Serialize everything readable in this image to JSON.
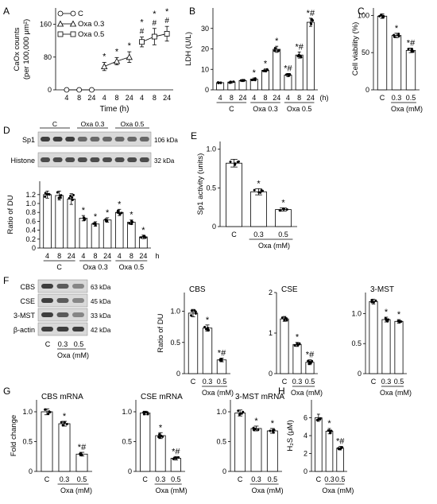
{
  "chart_data": [
    {
      "panel": "A",
      "type": "line",
      "ylabel": "CaOx counts",
      "ylabel2": "(per 100,000 μm²)",
      "xlabel": "Time (h)",
      "ylim": [
        0,
        200
      ],
      "yticks": [
        "0",
        "80",
        "160"
      ],
      "legend": [
        "C",
        "Oxa 0.3",
        "Oxa 0.5"
      ],
      "legend_position": "top-left",
      "groups": [
        "C",
        "Oxa 0.3",
        "Oxa 0.5"
      ],
      "x_labels": [
        "4",
        "8",
        "24",
        "4",
        "8",
        "24",
        "4",
        "8",
        "24"
      ],
      "series": [
        {
          "name": "C",
          "marker": "circle",
          "values": [
            0,
            0,
            0
          ],
          "err": [
            0,
            0,
            0
          ]
        },
        {
          "name": "Oxa 0.3",
          "marker": "triangle",
          "values": [
            57,
            70,
            80
          ],
          "err": [
            10,
            9,
            13
          ]
        },
        {
          "name": "Oxa 0.5",
          "marker": "square",
          "values": [
            117,
            130,
            137
          ],
          "err": [
            12,
            20,
            18
          ]
        }
      ],
      "annotations": [
        {
          "i": 3,
          "top": "*"
        },
        {
          "i": 4,
          "top": "*"
        },
        {
          "i": 5,
          "top": "*"
        },
        {
          "i": 6,
          "top": "*",
          "bottom": "#"
        },
        {
          "i": 7,
          "top": "*",
          "bottom": "#"
        },
        {
          "i": 8,
          "top": "*",
          "bottom": "#"
        }
      ]
    },
    {
      "panel": "B",
      "type": "bar",
      "ylabel": "LDH (U/L)",
      "ylim": [
        0,
        40
      ],
      "yticks": [
        "0",
        "10",
        "20",
        "30"
      ],
      "x_labels": [
        "4",
        "8",
        "24",
        "4",
        "8",
        "24",
        "4",
        "8",
        "24"
      ],
      "x_unit": "(h)",
      "groups": [
        "C",
        "Oxa 0.3",
        "Oxa 0.5"
      ],
      "values": [
        3.5,
        3.8,
        4.5,
        5.2,
        9.5,
        19.8,
        7.2,
        17,
        33
      ],
      "err": [
        0.3,
        0.4,
        0.5,
        0.6,
        0.7,
        1.5,
        0.8,
        1.5,
        2
      ],
      "annotations": [
        {
          "i": 3,
          "text": "*"
        },
        {
          "i": 4,
          "text": "*"
        },
        {
          "i": 5,
          "text": "*"
        },
        {
          "i": 6,
          "text": "*#"
        },
        {
          "i": 7,
          "text": "*#"
        },
        {
          "i": 8,
          "text": "*#"
        }
      ]
    },
    {
      "panel": "C",
      "type": "bar",
      "ylabel": "Cell viability (%)",
      "ylim": [
        0,
        110
      ],
      "yticks": [
        "0",
        "50",
        "100"
      ],
      "categories": [
        "C",
        "0.3",
        "0.5"
      ],
      "group_label": "Oxa (mM)",
      "values": [
        99,
        73,
        53
      ],
      "err": [
        3,
        3,
        3
      ],
      "annotations": [
        {
          "i": 1,
          "text": "*"
        },
        {
          "i": 2,
          "text": "*#"
        }
      ]
    },
    {
      "panel": "D",
      "type": "bar",
      "ylabel": "Ratio of DU",
      "ylim": [
        0,
        1.5
      ],
      "yticks": [
        "0",
        "0.2",
        "0.4",
        "0.6",
        "0.8",
        "1.0",
        "1.2"
      ],
      "x_labels": [
        "4",
        "8",
        "24",
        "4",
        "8",
        "24",
        "4",
        "8",
        "24"
      ],
      "x_unit": "h",
      "groups": [
        "C",
        "Oxa 0.3",
        "Oxa 0.5"
      ],
      "values": [
        1.2,
        1.18,
        1.1,
        0.67,
        0.54,
        0.63,
        0.8,
        0.58,
        0.25
      ],
      "err": [
        0.08,
        0.1,
        0.12,
        0.06,
        0.05,
        0.05,
        0.07,
        0.05,
        0.04
      ],
      "annotations": [
        {
          "i": 3,
          "text": "*"
        },
        {
          "i": 4,
          "text": "*"
        },
        {
          "i": 5,
          "text": "*"
        },
        {
          "i": 6,
          "text": "*"
        },
        {
          "i": 7,
          "text": "*"
        },
        {
          "i": 8,
          "text": "*"
        }
      ]
    },
    {
      "panel": "E",
      "type": "bar",
      "ylabel": "Sp1 activity (units)",
      "ylim": [
        0,
        1.1
      ],
      "yticks": [
        "0",
        "0.5",
        "1.0"
      ],
      "categories": [
        "C",
        "0.3",
        "0.5"
      ],
      "group_label": "Oxa (mM)",
      "values": [
        0.82,
        0.45,
        0.22
      ],
      "err": [
        0.05,
        0.04,
        0.02
      ],
      "annotations": [
        {
          "i": 1,
          "text": "*"
        },
        {
          "i": 2,
          "text": "*"
        }
      ]
    },
    {
      "panel": "F1",
      "type": "bar",
      "title": "CBS",
      "ylabel": "Ratio of DU",
      "ylim": [
        0,
        1.3
      ],
      "yticks": [
        "0",
        "0.5",
        "1.0"
      ],
      "categories": [
        "C",
        "0.3",
        "0.5"
      ],
      "group_label": "Oxa (mM)",
      "values": [
        0.97,
        0.73,
        0.22
      ],
      "err": [
        0.06,
        0.05,
        0.03
      ],
      "annotations": [
        {
          "i": 1,
          "text": "*"
        },
        {
          "i": 2,
          "text": "*#"
        }
      ]
    },
    {
      "panel": "F2",
      "type": "bar",
      "title": "CSE",
      "ylim": [
        0,
        2.0
      ],
      "yticks": [
        "0",
        "1",
        "2"
      ],
      "categories": [
        "C",
        "0.3",
        "0.5"
      ],
      "group_label": "Oxa (mM)",
      "values": [
        1.35,
        0.72,
        0.28
      ],
      "err": [
        0.06,
        0.05,
        0.06
      ],
      "annotations": [
        {
          "i": 1,
          "text": "*"
        },
        {
          "i": 2,
          "text": "*#"
        }
      ]
    },
    {
      "panel": "F3",
      "type": "bar",
      "title": "3-MST",
      "ylim": [
        0,
        1.35
      ],
      "yticks": [
        "0",
        "0.5",
        "1.0"
      ],
      "categories": [
        "C",
        "0.3",
        "0.5"
      ],
      "group_label": "Oxa (mM)",
      "values": [
        1.2,
        0.9,
        0.87
      ],
      "err": [
        0.04,
        0.04,
        0.03
      ],
      "annotations": [
        {
          "i": 1,
          "text": "*"
        },
        {
          "i": 2,
          "text": "*"
        }
      ]
    },
    {
      "panel": "G1",
      "type": "bar",
      "title": "CBS mRNA",
      "ylabel": "Fold change",
      "ylim": [
        0,
        1.2
      ],
      "yticks": [
        "0",
        "0.5",
        "1.0"
      ],
      "categories": [
        "C",
        "0.3",
        "0.5"
      ],
      "group_label": "Oxa (mM)",
      "values": [
        1.0,
        0.8,
        0.29
      ],
      "err": [
        0.05,
        0.04,
        0.03
      ],
      "annotations": [
        {
          "i": 1,
          "text": "*"
        },
        {
          "i": 2,
          "text": "*#"
        }
      ]
    },
    {
      "panel": "G2",
      "type": "bar",
      "title": "CSE mRNA",
      "ylim": [
        0,
        1.2
      ],
      "yticks": [
        "0",
        "0.5",
        "1.0"
      ],
      "categories": [
        "C",
        "0.3",
        "0.5"
      ],
      "group_label": "Oxa (mM)",
      "values": [
        0.98,
        0.6,
        0.22
      ],
      "err": [
        0.03,
        0.05,
        0.03
      ],
      "annotations": [
        {
          "i": 1,
          "text": "*"
        },
        {
          "i": 2,
          "text": "*#"
        }
      ]
    },
    {
      "panel": "G3",
      "type": "bar",
      "title": "3-MST mRNA",
      "ylim": [
        0,
        1.2
      ],
      "yticks": [
        "0",
        "0.5",
        "1.0"
      ],
      "categories": [
        "C",
        "0.3",
        "0.5"
      ],
      "group_label": "Oxa (mM)",
      "values": [
        0.98,
        0.72,
        0.68
      ],
      "err": [
        0.05,
        0.04,
        0.04
      ],
      "annotations": [
        {
          "i": 1,
          "text": "*"
        },
        {
          "i": 2,
          "text": "*"
        }
      ]
    },
    {
      "panel": "H",
      "type": "bar",
      "ylabel": "H₂S (μM)",
      "ylim": [
        0,
        8
      ],
      "yticks": [
        "0",
        "2",
        "4",
        "6"
      ],
      "categories": [
        "C",
        "0.3",
        "0.5"
      ],
      "group_label": "Oxa (mM)",
      "values": [
        6.0,
        4.5,
        2.6
      ],
      "err": [
        0.4,
        0.3,
        0.2
      ],
      "annotations": [
        {
          "i": 1,
          "text": "*"
        },
        {
          "i": 2,
          "text": "*#"
        }
      ]
    }
  ],
  "blots": {
    "D": {
      "groups": [
        "C",
        "Oxa 0.3",
        "Oxa 0.5"
      ],
      "rows": [
        {
          "label": "Sp1",
          "kda": "106 kDa"
        },
        {
          "label": "Histone",
          "kda": "32 kDa"
        }
      ]
    },
    "F": {
      "rows": [
        {
          "label": "CBS",
          "kda": "63 kDa"
        },
        {
          "label": "CSE",
          "kda": "45 kDa"
        },
        {
          "label": "3-MST",
          "kda": "33 kDa"
        },
        {
          "label": "β-actin",
          "kda": "42 kDa"
        }
      ],
      "lanes": [
        "C",
        "0.3",
        "0.5"
      ],
      "group_label": "Oxa (mM)"
    }
  },
  "panel_letters": [
    "A",
    "B",
    "C",
    "D",
    "E",
    "F",
    "G",
    "H"
  ]
}
